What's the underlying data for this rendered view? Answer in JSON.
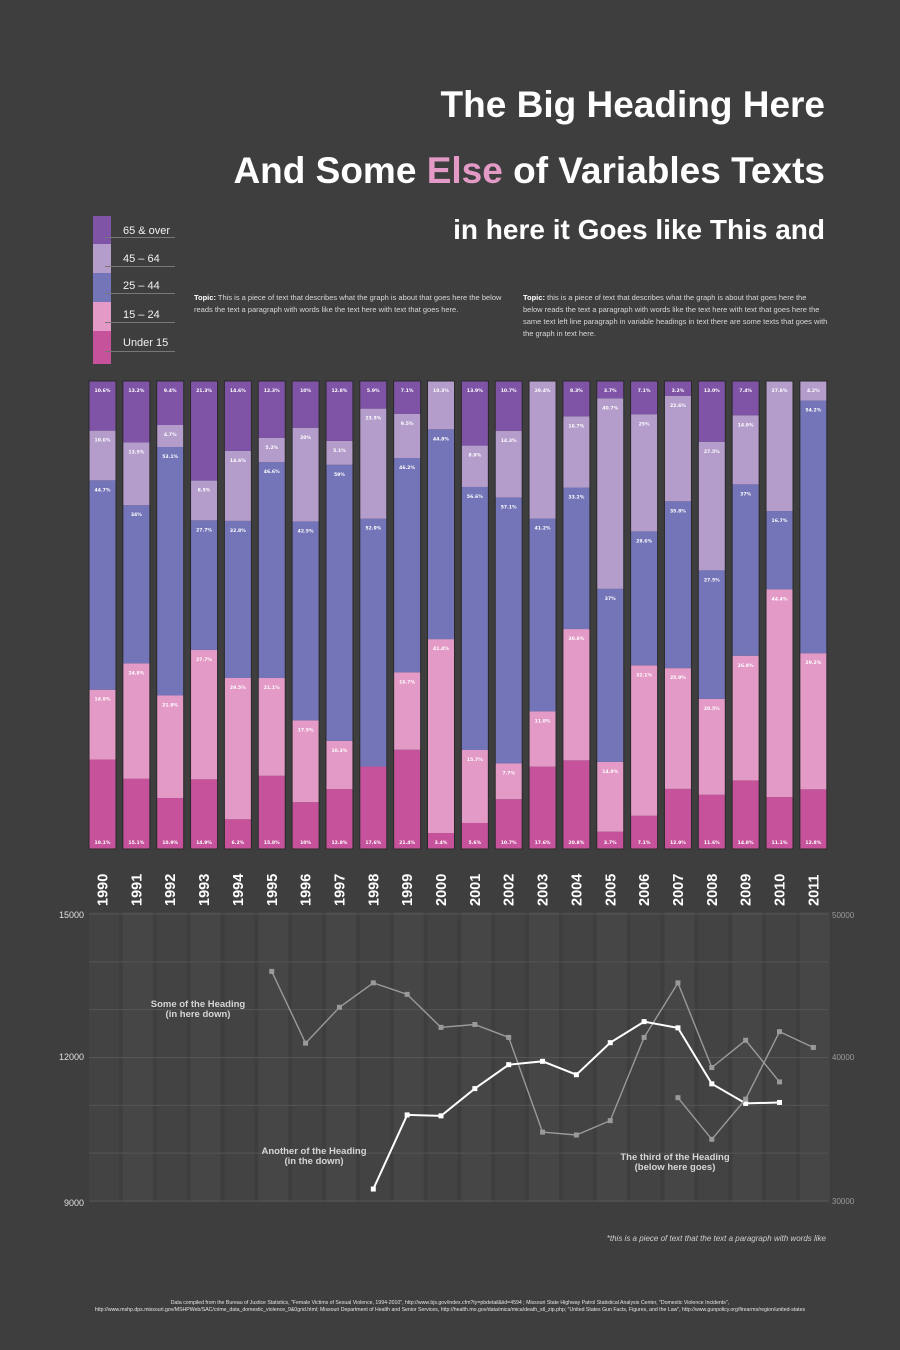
{
  "heading": {
    "line1": "The Big Heading Here",
    "line2_pre": "And Some ",
    "line2_accent": "Else",
    "line2_post": " of Variables Texts",
    "line3": "in here it Goes like This and"
  },
  "topics": [
    {
      "label": "Topic:",
      "text": "This is a piece of text that describes what the graph is about that goes here the below reads the text a paragraph with words like the text here with text that goes here."
    },
    {
      "label": "Topic:",
      "text": "this is a piece of text that describes what the graph is about that goes here the below reads the text a paragraph with words like the text here with text that goes here the same text left line paragraph in variable headings in text there are some texts that goes with the graph in text here."
    }
  ],
  "footnote": "*this is a piece of text that the text a paragraph with words like",
  "credits": "Data compiled from the Bureau of Justice Statistics, \"Female Victims of Sexual Violence, 1994-2010\", http://www.bjs.gov/index.cfm?ty=pbdetail&iid=4594 ; Missouri State Highway Patrol Statistical Analysis Center, \"Domestic Violence Incidents\", http://www.mshp.dps.missouri.gov/MSHPWeb/SAC/crime_data_domestic_violence_9&0grid.html; Missouri Department of Health and Senior Services, http://health.mo.gov/data/mica/mica/death_stl_zip.php; \"United States Gun Facts, Figures, and the Law\", http://www.gunpolicy.org/firearms/region/united-states",
  "colors": {
    "background": "#3e3e3e",
    "under15": "#c5529a",
    "age15_24": "#e39ac6",
    "age25_44": "#7474b8",
    "age45_64": "#b49ccb",
    "age65": "#7f54a6",
    "line_white": "#ffffff",
    "line_grey": "#9a9a9a"
  },
  "chart_data": [
    {
      "type": "bar",
      "subtype": "stacked-100",
      "legend": [
        "65 & over",
        "45 – 64",
        "25 – 44",
        "15 – 24",
        "Under 15"
      ],
      "categories": [
        "1990",
        "1991",
        "1992",
        "1993",
        "1994",
        "1995",
        "1996",
        "1997",
        "1998",
        "1999",
        "2000",
        "2001",
        "2002",
        "2003",
        "2004",
        "2005",
        "2006",
        "2007",
        "2008",
        "2009",
        "2010",
        "2011"
      ],
      "series": [
        {
          "name": "Under 15",
          "values": [
            19.1,
            15.1,
            10.9,
            14.9,
            6.2,
            15.8,
            10,
            12.8,
            17.6,
            21.4,
            3.4,
            5.6,
            10.7,
            17.6,
            20.8,
            3.7,
            7.1,
            12.9,
            11.6,
            14.8,
            11.1,
            12.8
          ],
          "labels": [
            "19.1%",
            "15.1%",
            "10.9%",
            "14.9%",
            "6.2%",
            "15.8%",
            "10%",
            "12.8%",
            "17.6%",
            "21.4%",
            "3.4%",
            "5.6%",
            "10.7%",
            "17.6%",
            "20.8%",
            "3.7%",
            "7.1%",
            "12.9%",
            "11.6%",
            "14.8%",
            "11.1%",
            "12.8%"
          ]
        },
        {
          "name": "15 – 24",
          "values": [
            14.9,
            24.8,
            21.9,
            27.7,
            29.5,
            21.1,
            17.5,
            10.3,
            0,
            16.7,
            41.4,
            15.7,
            7.7,
            11.8,
            30.8,
            14.9,
            32.1,
            25.9,
            20.5,
            26.9,
            44.4,
            29.2
          ],
          "labels": [
            "14.9%",
            "24.8%",
            "21.9%",
            "27.7%",
            "29.5%",
            "21.1%",
            "17.5%",
            "10.3%",
            "",
            "16.7%",
            "41.4%",
            "15.7%",
            "7.7%",
            "11.8%",
            "30.8%",
            "14.9%",
            "32.1%",
            "25.9%",
            "20.5%",
            "26.9%",
            "44.4%",
            "29.2%"
          ]
        },
        {
          "name": "25 – 44",
          "values": [
            44.7,
            34,
            53.1,
            27.7,
            32.8,
            46.6,
            42.5,
            59,
            52.9,
            46.2,
            44.8,
            56.6,
            57.1,
            41.2,
            33.2,
            37,
            28.6,
            35.8,
            27.5,
            37,
            16.7,
            54.2
          ],
          "labels": [
            "44.7%",
            "34%",
            "53.1%",
            "27.7%",
            "32.8%",
            "46.6%",
            "42.5%",
            "59%",
            "52.9%",
            "46.2%",
            "44.8%",
            "56.6%",
            "57.1%",
            "41.2%",
            "33.2%",
            "37%",
            "28.6%",
            "35.8%",
            "27.5%",
            "37%",
            "16.7%",
            "54.2%"
          ]
        },
        {
          "name": "45 – 64",
          "values": [
            10.6,
            13.5,
            4.7,
            8.5,
            14.6,
            5.2,
            20,
            5.1,
            23.5,
            9.5,
            10.3,
            8.9,
            14.3,
            29.4,
            16.7,
            40.7,
            25,
            22.6,
            27.5,
            14.9,
            27.8,
            4.2
          ],
          "labels": [
            "10.6%",
            "13.5%",
            "4.7%",
            "8.5%",
            "14.6%",
            "5.2%",
            "20%",
            "5.1%",
            "23.5%",
            "9.5%",
            "10.3%",
            "8.9%",
            "14.3%",
            "29.4%",
            "16.7%",
            "40.7%",
            "25%",
            "22.6%",
            "27.5%",
            "14.9%",
            "27.8%",
            "4.2%"
          ]
        },
        {
          "name": "65 & over",
          "values": [
            10.6,
            13.2,
            9.4,
            21.3,
            14.6,
            12.3,
            10,
            12.8,
            5.9,
            7.1,
            0,
            13.9,
            10.7,
            0,
            8.3,
            3.7,
            7.1,
            3.2,
            13,
            7.4,
            0,
            0
          ],
          "labels": [
            "10.6%",
            "13.2%",
            "9.4%",
            "21.3%",
            "14.6%",
            "12.3%",
            "10%",
            "12.8%",
            "5.9%",
            "7.1%",
            "",
            "13.9%",
            "10.7%",
            "",
            "8.3%",
            "3.7%",
            "7.1%",
            "3.2%",
            "13.0%",
            "7.4%",
            "",
            ""
          ]
        }
      ],
      "ylim": [
        0,
        100
      ]
    },
    {
      "type": "line",
      "x": [
        "1990",
        "1991",
        "1992",
        "1993",
        "1994",
        "1995",
        "1996",
        "1997",
        "1998",
        "1999",
        "2000",
        "2001",
        "2002",
        "2003",
        "2004",
        "2005",
        "2006",
        "2007",
        "2008",
        "2009",
        "2010",
        "2011"
      ],
      "y_left": {
        "ticks": [
          "15000",
          "12000",
          "9000"
        ],
        "ylim": [
          9000,
          15000
        ]
      },
      "y_right": {
        "ticks": [
          "50000",
          "40000",
          "30000"
        ],
        "ylim": [
          30000,
          50000
        ]
      },
      "series": [
        {
          "name": "Some of the Heading (in here down)",
          "axis": "right",
          "color": "grey",
          "values": [
            null,
            null,
            null,
            null,
            null,
            46000,
            41000,
            43500,
            45200,
            44400,
            42100,
            42300,
            41400,
            34800,
            34600,
            35600,
            41400,
            45200,
            39300,
            41200,
            38300,
            null
          ]
        },
        {
          "name": "Another of the Heading (in the down)",
          "axis": "left",
          "color": "white",
          "values": [
            null,
            null,
            null,
            null,
            null,
            null,
            null,
            null,
            9250,
            10800,
            10780,
            11350,
            11850,
            11920,
            11640,
            12310,
            12750,
            12620,
            11450,
            11040,
            11060,
            null
          ]
        },
        {
          "name": "The third of the Heading (below here goes)",
          "axis": "right",
          "color": "grey",
          "values": [
            null,
            null,
            null,
            null,
            null,
            null,
            null,
            null,
            null,
            null,
            null,
            null,
            null,
            null,
            null,
            null,
            null,
            37200,
            34300,
            37100,
            41800,
            40700
          ]
        }
      ],
      "annotations": [
        {
          "series": 0,
          "lines": [
            "Some of the Heading",
            "(in here down)"
          ]
        },
        {
          "series": 1,
          "lines": [
            "Another of the Heading",
            "(in the down)"
          ]
        },
        {
          "series": 2,
          "lines": [
            "The third of the Heading",
            "(below here goes)"
          ]
        }
      ]
    }
  ]
}
